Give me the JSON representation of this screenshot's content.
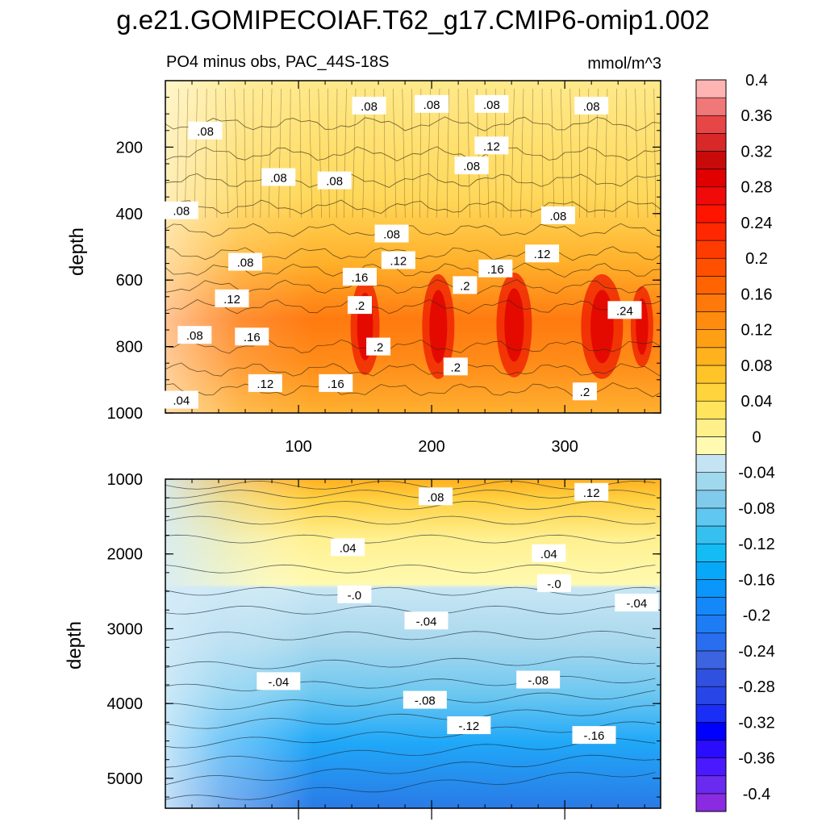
{
  "title": "g.e21.GOMIPECOIAF.T62_g17.CMIP6-omip1.002",
  "subtitle_left": "PO4 minus obs, PAC_44S-18S",
  "subtitle_right": "mmol/m^3",
  "chart_data": {
    "type": "heatmap",
    "title": "g.e21.GOMIPECOIAF.T62_g17.CMIP6-omip1.002",
    "subtitle": "PO4 minus obs, PAC_44S-18S",
    "units": "mmol/m^3",
    "x_range": [
      0,
      372
    ],
    "x_ticks": [
      100,
      200,
      300
    ],
    "x_tick_labels": [
      "100",
      "200",
      "300"
    ],
    "colorbar": {
      "levels": [
        -0.4,
        -0.38,
        -0.36,
        -0.34,
        -0.32,
        -0.3,
        -0.28,
        -0.26,
        -0.24,
        -0.22,
        -0.2,
        -0.18,
        -0.16,
        -0.14,
        -0.12,
        -0.1,
        -0.08,
        -0.06,
        -0.04,
        -0.02,
        0,
        0.02,
        0.04,
        0.06,
        0.08,
        0.1,
        0.12,
        0.14,
        0.16,
        0.18,
        0.2,
        0.22,
        0.24,
        0.26,
        0.28,
        0.3,
        0.32,
        0.34,
        0.36,
        0.38,
        0.4
      ],
      "labels": [
        "-0.4",
        "-0.36",
        "-0.32",
        "-0.28",
        "-0.24",
        "-0.2",
        "-0.16",
        "-0.12",
        "-0.08",
        "-0.04",
        "0",
        "0.04",
        "0.08",
        "0.12",
        "0.16",
        "0.2",
        "0.24",
        "0.28",
        "0.32",
        "0.36",
        "0.4"
      ],
      "colors": [
        "#8a2be2",
        "#6a2af0",
        "#4b19ff",
        "#2a0cff",
        "#0000ff",
        "#1a2ef5",
        "#2846e8",
        "#3050e0",
        "#3c64e0",
        "#2a6ef0",
        "#1e7cf5",
        "#1488f8",
        "#0a96fa",
        "#08a8f8",
        "#14bcf6",
        "#36c0f0",
        "#5ec8f2",
        "#80cbeb",
        "#a0d8ee",
        "#c4e4f4",
        "#fffab0",
        "#fff08a",
        "#ffe45c",
        "#ffd43c",
        "#ffc428",
        "#ffb21e",
        "#ffa014",
        "#ff8c0f",
        "#ff780a",
        "#ff6400",
        "#ff5000",
        "#ff3c00",
        "#ff2800",
        "#ff1400",
        "#f00a0a",
        "#e00000",
        "#c80a0a",
        "#d82828",
        "#e64646",
        "#f07878",
        "#ffb4b4"
      ]
    },
    "panels": [
      {
        "name": "upper (0-1000 m)",
        "ylabel": "depth",
        "y_range": [
          0,
          1000
        ],
        "y_ticks": [
          200,
          400,
          600,
          800,
          1000
        ],
        "y_tick_labels": [
          "200",
          "400",
          "600",
          "800",
          "1000"
        ],
        "contour_labels": [
          {
            "text": ".08",
            "x": 30,
            "y": 150
          },
          {
            "text": ".08",
            "x": 153,
            "y": 75
          },
          {
            "text": ".08",
            "x": 200,
            "y": 70
          },
          {
            "text": ".08",
            "x": 245,
            "y": 70
          },
          {
            "text": ".08",
            "x": 320,
            "y": 75
          },
          {
            "text": ".12",
            "x": 245,
            "y": 195
          },
          {
            "text": ".08",
            "x": 230,
            "y": 255
          },
          {
            "text": ".08",
            "x": 85,
            "y": 290
          },
          {
            "text": ".08",
            "x": 127,
            "y": 300
          },
          {
            "text": ".08",
            "x": 12,
            "y": 390
          },
          {
            "text": ".08",
            "x": 295,
            "y": 405
          },
          {
            "text": ".08",
            "x": 170,
            "y": 460
          },
          {
            "text": ".12",
            "x": 283,
            "y": 520
          },
          {
            "text": ".08",
            "x": 60,
            "y": 545
          },
          {
            "text": ".12",
            "x": 175,
            "y": 540
          },
          {
            "text": ".16",
            "x": 248,
            "y": 565
          },
          {
            "text": ".16",
            "x": 146,
            "y": 590
          },
          {
            "text": ".2",
            "x": 225,
            "y": 615
          },
          {
            "text": ".12",
            "x": 50,
            "y": 655
          },
          {
            "text": ".2",
            "x": 146,
            "y": 675
          },
          {
            "text": ".24",
            "x": 345,
            "y": 690
          },
          {
            "text": ".08",
            "x": 22,
            "y": 765
          },
          {
            "text": ".16",
            "x": 65,
            "y": 770
          },
          {
            "text": ".2",
            "x": 160,
            "y": 800
          },
          {
            "text": ".2",
            "x": 218,
            "y": 860
          },
          {
            "text": ".12",
            "x": 75,
            "y": 910
          },
          {
            "text": ".16",
            "x": 128,
            "y": 910
          },
          {
            "text": ".2",
            "x": 315,
            "y": 935
          },
          {
            "text": ".04",
            "x": 12,
            "y": 960
          }
        ]
      },
      {
        "name": "lower (1000-5500 m)",
        "ylabel": "depth",
        "y_range": [
          1000,
          5400
        ],
        "y_ticks": [
          1000,
          2000,
          3000,
          4000,
          5000
        ],
        "y_tick_labels": [
          "1000",
          "2000",
          "3000",
          "4000",
          "5000"
        ],
        "contour_labels": [
          {
            "text": ".08",
            "x": 203,
            "y": 1230
          },
          {
            "text": ".12",
            "x": 320,
            "y": 1170
          },
          {
            "text": ".04",
            "x": 137,
            "y": 1910
          },
          {
            "text": ".04",
            "x": 288,
            "y": 1990
          },
          {
            "text": "-.0",
            "x": 292,
            "y": 2390
          },
          {
            "text": "-.0",
            "x": 142,
            "y": 2540
          },
          {
            "text": "-.04",
            "x": 354,
            "y": 2650
          },
          {
            "text": "-.04",
            "x": 196,
            "y": 2890
          },
          {
            "text": "-.04",
            "x": 85,
            "y": 3700
          },
          {
            "text": "-.08",
            "x": 280,
            "y": 3680
          },
          {
            "text": "-.08",
            "x": 195,
            "y": 3950
          },
          {
            "text": "-.12",
            "x": 228,
            "y": 4290
          },
          {
            "text": "-.16",
            "x": 322,
            "y": 4420
          }
        ]
      }
    ]
  }
}
